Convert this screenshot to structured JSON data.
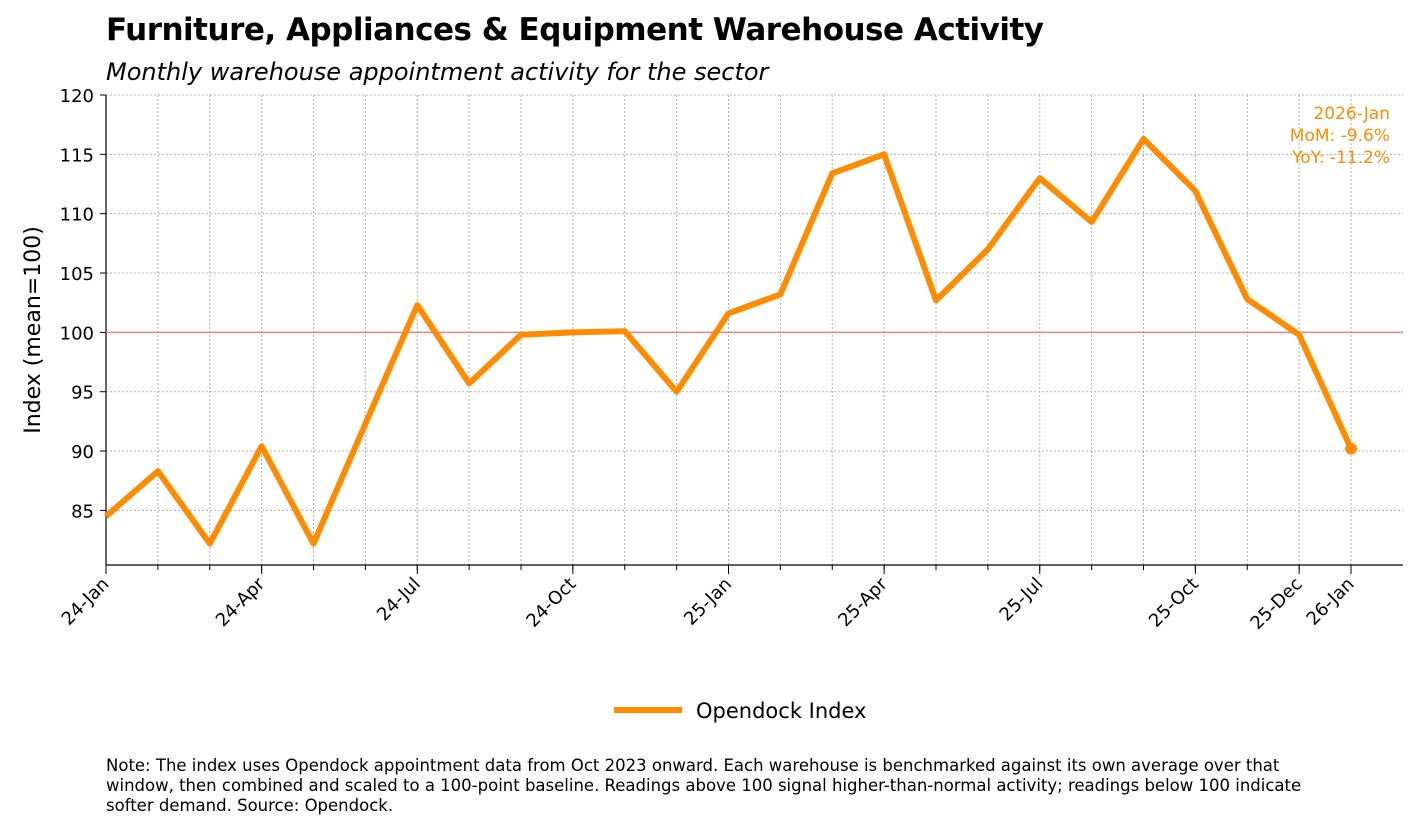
{
  "chart_data": {
    "type": "line",
    "title": "Furniture, Appliances & Equipment Warehouse Activity",
    "subtitle": "Monthly warehouse appointment activity for the sector",
    "xlabel": "",
    "ylabel": "Index (mean=100)",
    "ylim": [
      80.4,
      120
    ],
    "yticks": [
      85,
      90,
      95,
      100,
      105,
      110,
      115,
      120
    ],
    "x": [
      "2024-01",
      "2024-02",
      "2024-03",
      "2024-04",
      "2024-05",
      "2024-06",
      "2024-07",
      "2024-08",
      "2024-09",
      "2024-10",
      "2024-11",
      "2024-12",
      "2025-01",
      "2025-02",
      "2025-03",
      "2025-04",
      "2025-05",
      "2025-06",
      "2025-07",
      "2025-08",
      "2025-09",
      "2025-10",
      "2025-11",
      "2025-12",
      "2026-01"
    ],
    "xtick_labels": [
      {
        "index": 0,
        "label": "24-Jan"
      },
      {
        "index": 3,
        "label": "24-Apr"
      },
      {
        "index": 6,
        "label": "24-Jul"
      },
      {
        "index": 9,
        "label": "24-Oct"
      },
      {
        "index": 12,
        "label": "25-Jan"
      },
      {
        "index": 15,
        "label": "25-Apr"
      },
      {
        "index": 18,
        "label": "25-Jul"
      },
      {
        "index": 21,
        "label": "25-Oct"
      },
      {
        "index": 23,
        "label": "25-Dec"
      },
      {
        "index": 24,
        "label": "26-Jan"
      }
    ],
    "series": [
      {
        "name": "Opendock Index",
        "color": "#ff8c00",
        "values": [
          84.5,
          88.3,
          82.2,
          90.4,
          82.2,
          92.3,
          102.3,
          95.7,
          99.8,
          100.0,
          100.1,
          95.0,
          101.6,
          103.2,
          113.4,
          115.0,
          102.7,
          107.0,
          113.0,
          109.3,
          116.3,
          111.9,
          102.8,
          99.8,
          90.2
        ]
      }
    ],
    "reference_line": {
      "value": 100,
      "color": "#f08080"
    },
    "grid": true,
    "legend": {
      "placement": "bottom-center",
      "label": "Opendock Index"
    },
    "annotation": {
      "lines": [
        "2026-Jan",
        "MoM: -9.6%",
        "YoY: -11.2%"
      ],
      "placement": "top-right",
      "color": "#ff8c00"
    }
  },
  "note": "Note: The index uses Opendock appointment data from Oct 2023 onward. Each warehouse is benchmarked against its own average over that window, then combined and scaled to a 100-point baseline. Readings above 100 signal higher-than-normal activity; readings below 100 indicate softer demand. Source: Opendock."
}
